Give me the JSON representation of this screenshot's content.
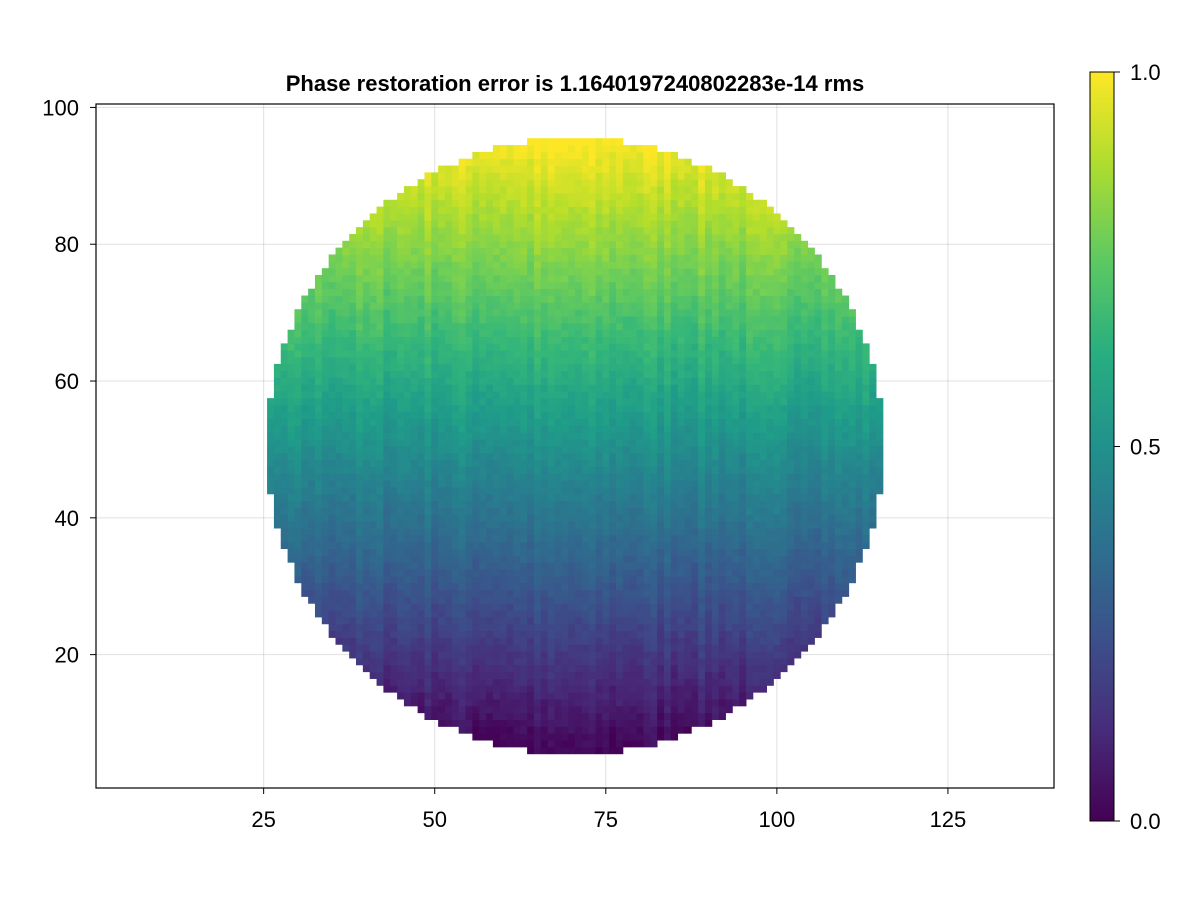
{
  "chart_data": {
    "type": "heatmap",
    "title": "Phase restoration error is 1.1640197240802283e-14 rms",
    "xlabel": "",
    "ylabel": "",
    "xlim": [
      0.5,
      140.5
    ],
    "ylim": [
      0.5,
      100.5
    ],
    "x_ticks": [
      25,
      50,
      75,
      100,
      125
    ],
    "x_tick_labels": [
      "25",
      "50",
      "75",
      "100",
      "125"
    ],
    "y_ticks": [
      20,
      40,
      60,
      80,
      100
    ],
    "y_tick_labels": [
      "20",
      "40",
      "60",
      "80",
      "100"
    ],
    "grid": true,
    "colormap": "viridis",
    "colorbar": {
      "range": [
        0.0,
        1.0
      ],
      "ticks": [
        0.0,
        0.5,
        1.0
      ],
      "tick_labels": [
        "0.0",
        "0.5",
        "1.0"
      ],
      "placement": "right"
    },
    "field": {
      "shape": "circular aperture",
      "center": [
        70.5,
        50.5
      ],
      "radius": 45,
      "value_model": "approximately linear ramp in y from 0.0 at bottom edge to 1.0 at top edge, with column-wise noise",
      "value_min": 0.0,
      "value_max": 1.0,
      "outside_value": "NaN (blank)"
    }
  }
}
